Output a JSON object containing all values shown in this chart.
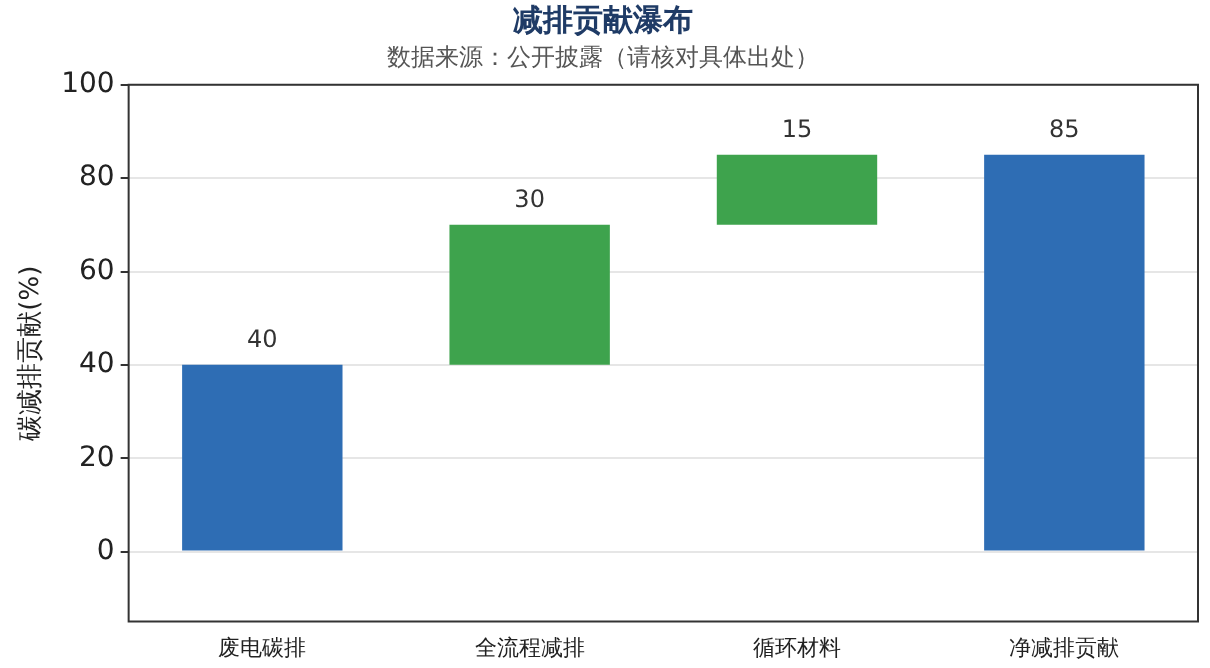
{
  "chart_data": {
    "type": "bar",
    "title": "减排贡献瀑布",
    "subtitle": "数据来源：公开披露（请核对具体出处）",
    "ylabel": "碳减排贡献(%)",
    "categories": [
      "废电碳排",
      "全流程减排",
      "循环材料",
      "净减排贡献"
    ],
    "values": [
      40,
      30,
      15,
      85
    ],
    "base": [
      0,
      40,
      70,
      0
    ],
    "colors": [
      "#2e6db4",
      "#3ea34d",
      "#3ea34d",
      "#2e6db4"
    ],
    "ylim": [
      -15,
      100
    ],
    "yticks": [
      0,
      20,
      40,
      60,
      80,
      100
    ],
    "grid": "y",
    "legend": false,
    "data_labels": true
  }
}
